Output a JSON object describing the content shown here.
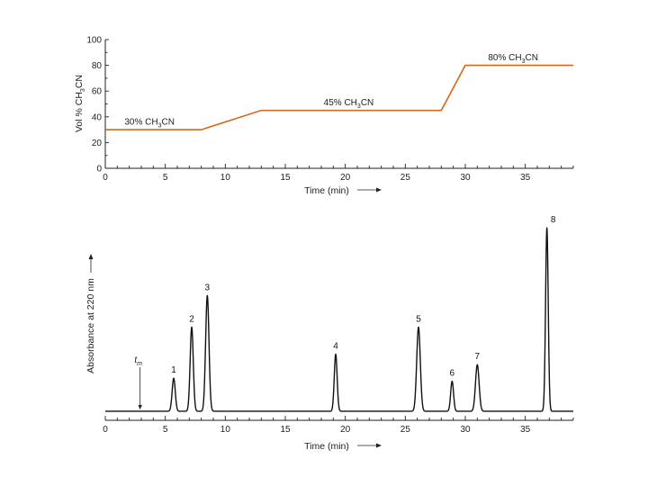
{
  "chart_data": [
    {
      "type": "line",
      "ylabel_parts": [
        "Vol % CH",
        "3",
        "CN"
      ],
      "xlabel": "Time (min)",
      "xlim": [
        0,
        39
      ],
      "ylim": [
        0,
        100
      ],
      "xticks": [
        0,
        5,
        10,
        15,
        20,
        25,
        30,
        35
      ],
      "yticks": [
        0,
        20,
        40,
        60,
        80,
        100
      ],
      "color": "#d2691e",
      "series": [
        {
          "x": [
            0,
            8,
            13,
            28,
            30,
            39
          ],
          "y": [
            30,
            30,
            45,
            45,
            80,
            80
          ]
        }
      ],
      "annotations": [
        {
          "parts": [
            "30% CH",
            "3",
            "CN"
          ],
          "x": 1.6,
          "y": 34
        },
        {
          "parts": [
            "45% CH",
            "3",
            "CN"
          ],
          "x": 18.2,
          "y": 49
        },
        {
          "parts": [
            "80% CH",
            "3",
            "CN"
          ],
          "x": 31.9,
          "y": 84
        }
      ]
    },
    {
      "type": "line",
      "ylabel": "Absorbance at 220 nm",
      "xlabel": "Time (min)",
      "xlim": [
        0,
        39
      ],
      "ylim": [
        0,
        1
      ],
      "xticks": [
        0,
        5,
        10,
        15,
        20,
        25,
        30,
        35
      ],
      "color": "#111111",
      "baseline": 0.06,
      "peaks": [
        {
          "label": "1",
          "t": 5.7,
          "height": 0.22,
          "width": 0.13
        },
        {
          "label": "2",
          "t": 7.2,
          "height": 0.56,
          "width": 0.13
        },
        {
          "label": "3",
          "t": 8.5,
          "height": 0.77,
          "width": 0.14
        },
        {
          "label": "4",
          "t": 19.2,
          "height": 0.38,
          "width": 0.12
        },
        {
          "label": "5",
          "t": 26.1,
          "height": 0.56,
          "width": 0.15
        },
        {
          "label": "6",
          "t": 28.9,
          "height": 0.2,
          "width": 0.12
        },
        {
          "label": "7",
          "t": 31.0,
          "height": 0.31,
          "width": 0.15
        },
        {
          "label": "8",
          "t": 36.8,
          "height": 1.22,
          "width": 0.11
        }
      ],
      "tm_marker": {
        "label_main": "t",
        "label_sub": "m",
        "t": 2.9
      }
    }
  ]
}
